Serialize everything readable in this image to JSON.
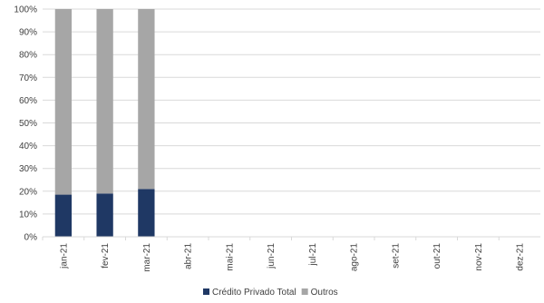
{
  "chart_data": {
    "type": "bar",
    "stacked": true,
    "categories": [
      "jan-21",
      "fev-21",
      "mar-21",
      "abr-21",
      "mai-21",
      "jun-21",
      "jul-21",
      "ago-21",
      "set-21",
      "out-21",
      "nov-21",
      "dez-21"
    ],
    "series": [
      {
        "name": "Crédito Privado Total",
        "color": "#1f3864",
        "values": [
          18.5,
          19,
          21,
          null,
          null,
          null,
          null,
          null,
          null,
          null,
          null,
          null
        ]
      },
      {
        "name": "Outros",
        "color": "#a6a6a6",
        "values": [
          81.5,
          81,
          79,
          null,
          null,
          null,
          null,
          null,
          null,
          null,
          null,
          null
        ]
      }
    ],
    "y_ticks": [
      "0%",
      "10%",
      "20%",
      "30%",
      "40%",
      "50%",
      "60%",
      "70%",
      "80%",
      "90%",
      "100%"
    ],
    "ylim": [
      0,
      100
    ],
    "grid": true,
    "legend_position": "bottom"
  }
}
